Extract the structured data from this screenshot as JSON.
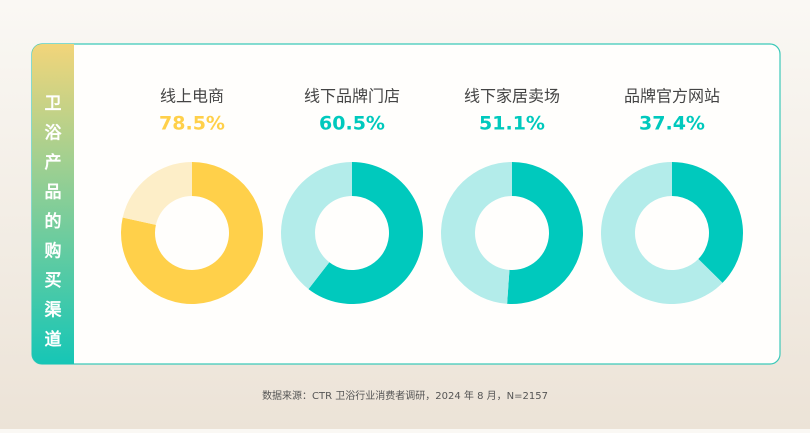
{
  "title": "卫浴产品的购买渠道",
  "source": "数据来源：CTR 卫浴行业消费者调研，2024 年 8 月，N=2157",
  "chart_data": [
    {
      "type": "donut",
      "title": "线上电商",
      "values": [
        78.5,
        21.5
      ],
      "value_labels": [
        "78.5%",
        null
      ],
      "colors": [
        "#ffd04a",
        "#fdeec8"
      ]
    },
    {
      "type": "donut",
      "title": "线下品牌门店",
      "values": [
        60.5,
        39.5
      ],
      "value_labels": [
        "60.5%",
        null
      ],
      "colors": [
        "#00c9bd",
        "#b3ecea"
      ]
    },
    {
      "type": "donut",
      "title": "线下家居卖场",
      "values": [
        51.1,
        48.9
      ],
      "value_labels": [
        "51.1%",
        null
      ],
      "colors": [
        "#00c9bd",
        "#b3ecea"
      ]
    },
    {
      "type": "donut",
      "title": "品牌官方网站",
      "values": [
        37.4,
        62.6
      ],
      "value_labels": [
        "37.4%",
        null
      ],
      "colors": [
        "#00c9bd",
        "#b3ecea"
      ]
    }
  ]
}
